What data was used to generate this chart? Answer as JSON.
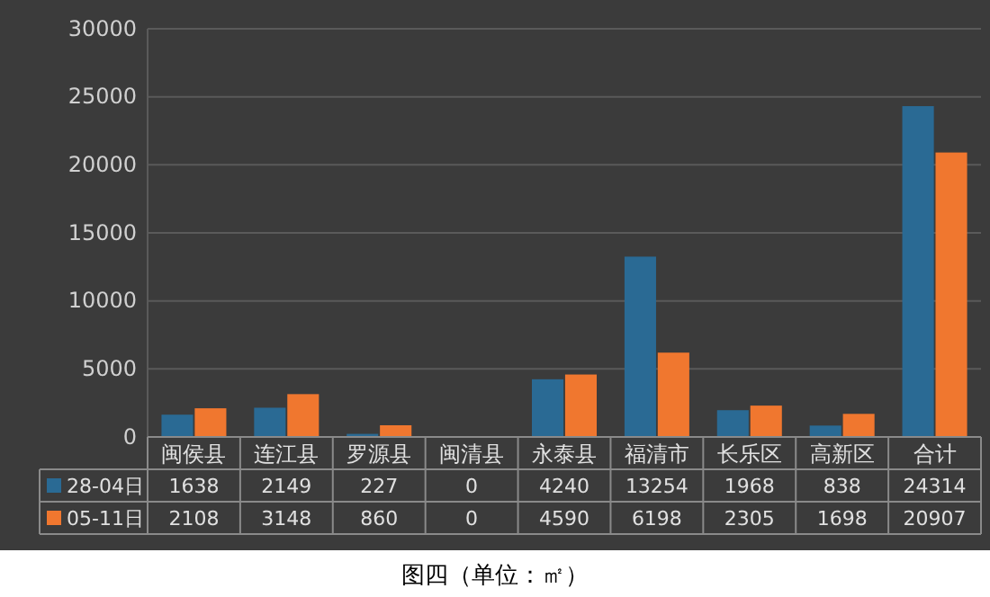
{
  "chart_data": {
    "type": "bar",
    "title": "图四（单位：㎡）",
    "categories": [
      "闽侯县",
      "连江县",
      "罗源县",
      "闽清县",
      "永泰县",
      "福清市",
      "长乐区",
      "高新区",
      "合计"
    ],
    "series": [
      {
        "name": "28-04日",
        "color": "#2a6a94",
        "values": [
          1638,
          2149,
          227,
          0,
          4240,
          13254,
          1968,
          838,
          24314
        ]
      },
      {
        "name": "05-11日",
        "color": "#f0772f",
        "values": [
          2108,
          3148,
          860,
          0,
          4590,
          6198,
          2305,
          1698,
          20907
        ]
      }
    ],
    "ylim": [
      0,
      30000
    ],
    "yticks": [
      0,
      5000,
      10000,
      15000,
      20000,
      25000,
      30000
    ],
    "grid": "y",
    "legend": "bottom",
    "data_labels": true
  }
}
